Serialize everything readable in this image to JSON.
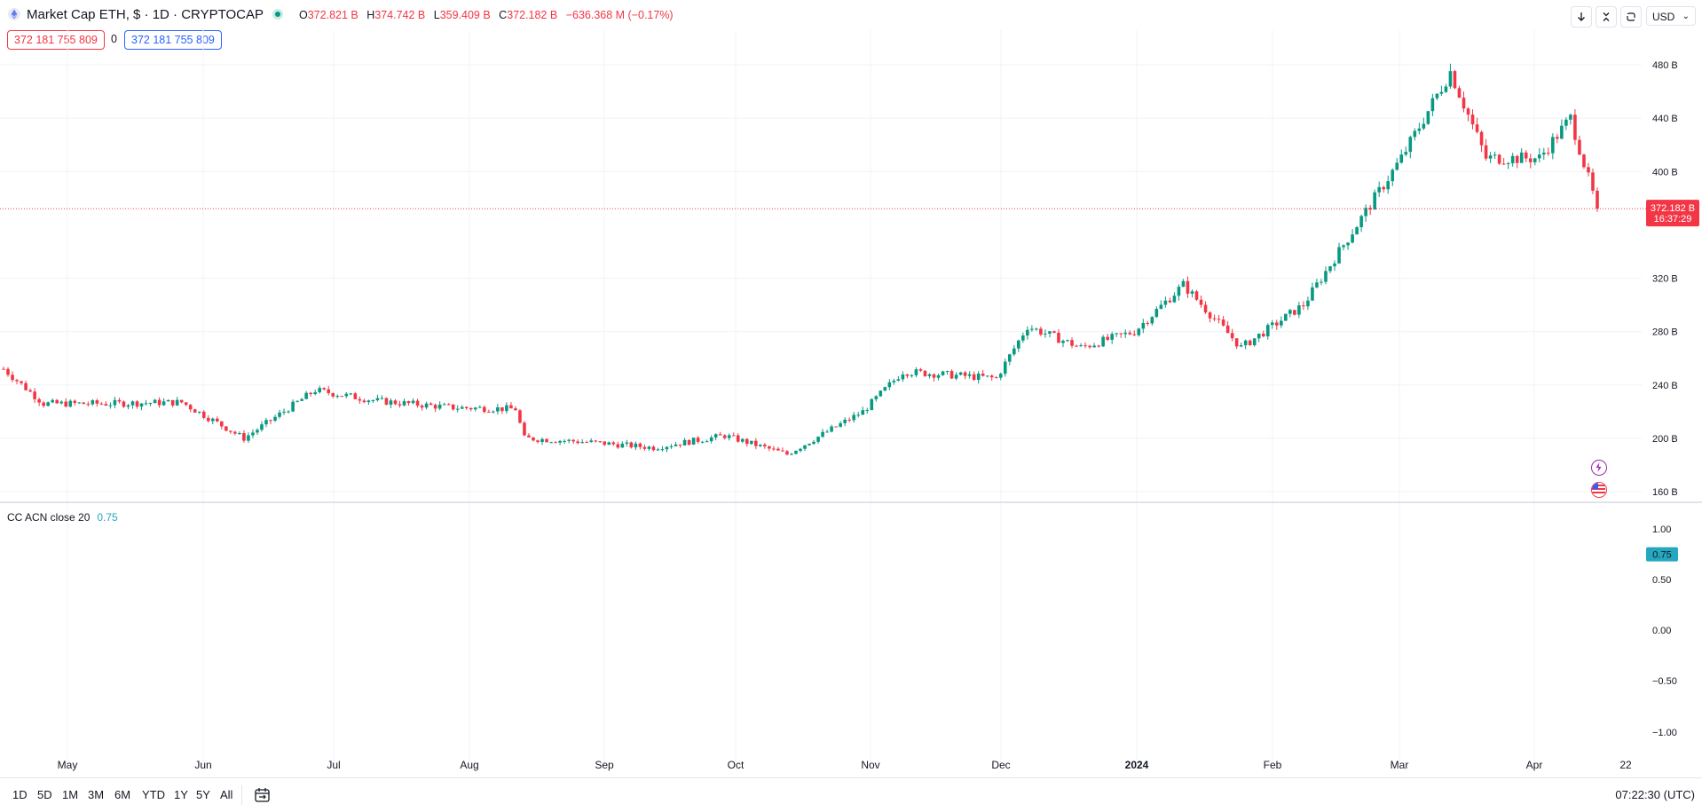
{
  "header": {
    "title": "Market Cap ETH, $ · 1D · CRYPTOCAP",
    "ohlc": [
      {
        "key": "O",
        "value": "372.821 B"
      },
      {
        "key": "H",
        "value": "374.742 B"
      },
      {
        "key": "L",
        "value": "359.409 B"
      },
      {
        "key": "C",
        "value": "372.182 B"
      }
    ],
    "change": "−636.368 M (−0.17%)",
    "bid": "372 181 755 809",
    "spread": "0",
    "ask": "372 181 755 809",
    "currency": "USD"
  },
  "colors": {
    "up": "#089981",
    "down": "#f23645",
    "indicator": "#26a7c0",
    "grid": "#f0f3fa"
  },
  "toolbar_icons": [
    "arrow-down-icon",
    "collapse-icon",
    "refresh-icon"
  ],
  "price_tag": {
    "value": "372.182 B",
    "countdown": "16:37:29"
  },
  "price_axis": [
    "480 B",
    "440 B",
    "400 B",
    "320 B",
    "280 B",
    "240 B",
    "200 B",
    "160 B"
  ],
  "indicator": {
    "legend_name": "CC ACN close 20",
    "legend_value": "0.75",
    "axis": [
      "1.00",
      "0.50",
      "0.00",
      "−0.50",
      "−1.00"
    ],
    "tag": "0.75"
  },
  "time_axis": [
    "May",
    "Jun",
    "Jul",
    "Aug",
    "Sep",
    "Oct",
    "Nov",
    "Dec",
    "2024",
    "Feb",
    "Mar",
    "Apr",
    "22"
  ],
  "ranges": [
    "1D",
    "5D",
    "1M",
    "3M",
    "6M",
    "YTD",
    "1Y",
    "5Y",
    "All"
  ],
  "clock": "07:22:30 (UTC)",
  "chart_data": {
    "type": "candlestick",
    "price_axis": {
      "unit": "B",
      "ticks": [
        160,
        200,
        240,
        280,
        320,
        400,
        440,
        480
      ],
      "range": [
        155,
        495
      ]
    },
    "last_price": 372.182,
    "monthly_path": [
      {
        "date": "2023-04-22",
        "close": 252
      },
      {
        "date": "2023-05-01",
        "close": 226
      },
      {
        "date": "2023-05-15",
        "close": 226
      },
      {
        "date": "2023-06-01",
        "close": 227
      },
      {
        "date": "2023-06-15",
        "close": 200
      },
      {
        "date": "2023-07-01",
        "close": 236
      },
      {
        "date": "2023-07-15",
        "close": 228
      },
      {
        "date": "2023-08-01",
        "close": 223
      },
      {
        "date": "2023-08-15",
        "close": 222
      },
      {
        "date": "2023-08-17",
        "close": 200
      },
      {
        "date": "2023-09-01",
        "close": 197
      },
      {
        "date": "2023-09-15",
        "close": 193
      },
      {
        "date": "2023-10-01",
        "close": 202
      },
      {
        "date": "2023-10-15",
        "close": 188
      },
      {
        "date": "2023-11-01",
        "close": 220
      },
      {
        "date": "2023-11-10",
        "close": 250
      },
      {
        "date": "2023-12-01",
        "close": 245
      },
      {
        "date": "2023-12-08",
        "close": 284
      },
      {
        "date": "2023-12-20",
        "close": 268
      },
      {
        "date": "2024-01-01",
        "close": 280
      },
      {
        "date": "2024-01-12",
        "close": 315
      },
      {
        "date": "2024-01-25",
        "close": 268
      },
      {
        "date": "2024-02-08",
        "close": 300
      },
      {
        "date": "2024-02-20",
        "close": 360
      },
      {
        "date": "2024-03-01",
        "close": 410
      },
      {
        "date": "2024-03-12",
        "close": 475
      },
      {
        "date": "2024-03-20",
        "close": 410
      },
      {
        "date": "2024-04-01",
        "close": 410
      },
      {
        "date": "2024-04-08",
        "close": 440
      },
      {
        "date": "2024-04-14",
        "close": 372
      }
    ],
    "indicator_axis": {
      "ticks": [
        1.0,
        0.5,
        0.0,
        -0.5,
        -1.0
      ]
    },
    "indicator_value": 0.75
  }
}
